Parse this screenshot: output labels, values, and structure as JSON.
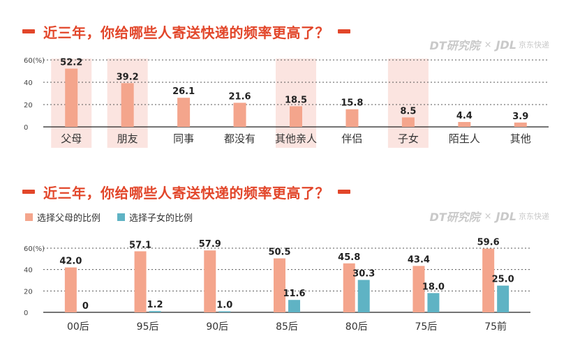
{
  "colors": {
    "accent": "#e2462a",
    "bar_primary": "#f4a58c",
    "bar_secondary": "#5fb3c4",
    "highlight_bg": "#fbe4e0",
    "axis_text": "#333333"
  },
  "chart_data": [
    {
      "type": "bar",
      "title": "近三年，你给哪些人寄送快递的频率更高了？",
      "brand": {
        "dt": "DT研究院",
        "separator": "×",
        "jdl": "JDL",
        "jdl_sub": "京东快递"
      },
      "categories": [
        "父母",
        "朋友",
        "同事",
        "都没有",
        "其他亲人",
        "伴侣",
        "子女",
        "陌生人",
        "其他"
      ],
      "values": [
        52.2,
        39.2,
        26.1,
        21.6,
        18.5,
        15.8,
        8.5,
        4.4,
        3.9
      ],
      "value_labels": [
        "52.2",
        "39.2",
        "26.1",
        "21.6",
        "18.5",
        "15.8",
        "8.5",
        "4.4",
        "3.9"
      ],
      "highlighted": [
        "父母",
        "朋友",
        "其他亲人",
        "子女"
      ],
      "yticks": [
        "0",
        "20",
        "40",
        "60(%)"
      ],
      "ylim": [
        0,
        60
      ],
      "grid": true
    },
    {
      "type": "bar",
      "title": "近三年，你给哪些人寄送快递的频率更高了？",
      "brand": {
        "dt": "DT研究院",
        "separator": "×",
        "jdl": "JDL",
        "jdl_sub": "京东快递"
      },
      "categories": [
        "00后",
        "95后",
        "90后",
        "85后",
        "80后",
        "75后",
        "75前"
      ],
      "series": [
        {
          "name": "选择父母的比例",
          "values": [
            42.0,
            57.1,
            57.9,
            50.5,
            45.8,
            43.4,
            59.6
          ],
          "value_labels": [
            "42.0",
            "57.1",
            "57.9",
            "50.5",
            "45.8",
            "43.4",
            "59.6"
          ]
        },
        {
          "name": "选择子女的比例",
          "values": [
            0,
            1.2,
            1.0,
            11.6,
            30.3,
            18.0,
            25.0
          ],
          "value_labels": [
            "0",
            "1.2",
            "1.0",
            "11.6",
            "30.3",
            "18.0",
            "25.0"
          ]
        }
      ],
      "yticks": [
        "0",
        "20",
        "40",
        "60(%)"
      ],
      "ylim": [
        0,
        60
      ],
      "legend": "top-left",
      "grid": true
    }
  ]
}
